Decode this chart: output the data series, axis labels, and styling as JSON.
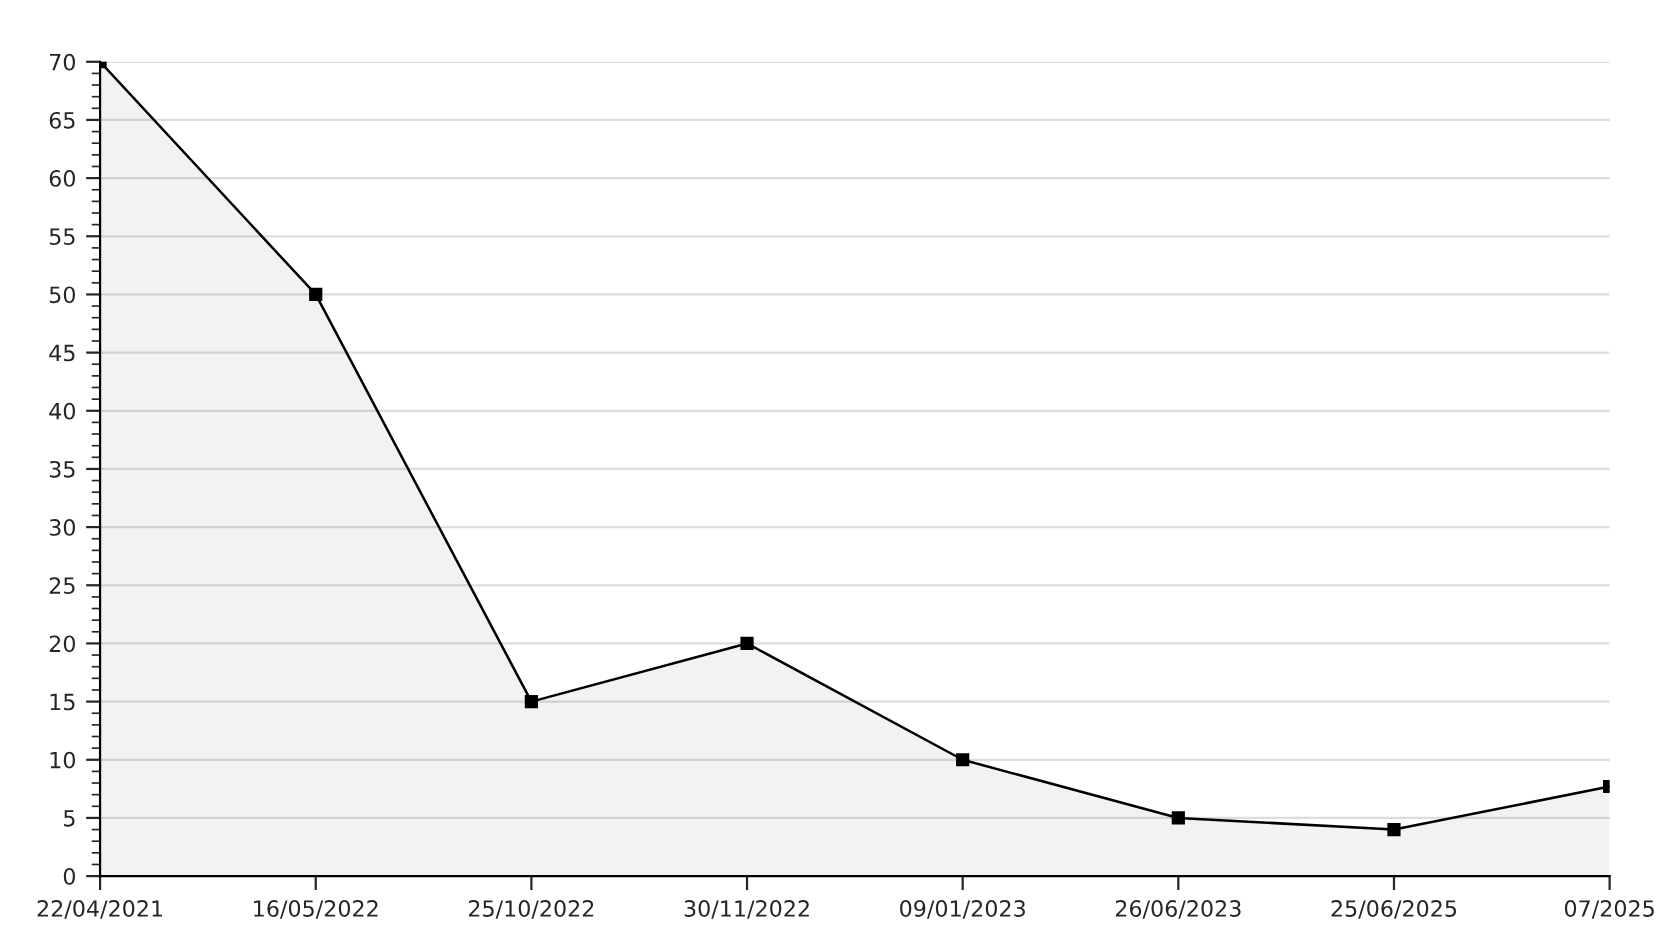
{
  "chart_data": {
    "type": "area",
    "categories": [
      "22/04/2021",
      "16/05/2022",
      "25/10/2022",
      "30/11/2022",
      "09/01/2023",
      "26/06/2023",
      "25/06/2025",
      "07/2025"
    ],
    "series": [
      {
        "color": "#000000",
        "values": [
          70,
          50,
          15,
          20,
          10,
          5,
          4,
          7.7
        ]
      }
    ],
    "ylim": [
      0,
      70
    ],
    "yticks": [
      0,
      5,
      10,
      15,
      20,
      25,
      30,
      35,
      40,
      45,
      50,
      55,
      60,
      65,
      70
    ],
    "grid": "y",
    "marker": "square",
    "line_style": "solid"
  }
}
